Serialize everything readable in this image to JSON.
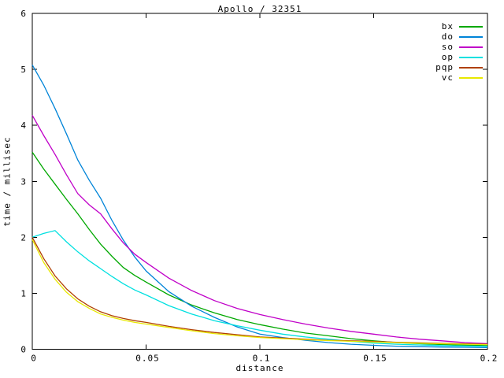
{
  "chart": {
    "title": "Apollo / 32351",
    "xlabel": "distance",
    "ylabel": "time / millisec"
  },
  "chart_data": {
    "type": "line",
    "title": "Apollo / 32351",
    "xlabel": "distance",
    "ylabel": "time / millisec",
    "xlim": [
      0,
      0.2
    ],
    "ylim": [
      0,
      6
    ],
    "x_ticks": [
      0,
      0.05,
      0.1,
      0.15,
      0.2
    ],
    "x_tick_labels": [
      "0",
      "0.05",
      "0.1",
      "0.15",
      "0.2"
    ],
    "y_ticks": [
      0,
      1,
      2,
      3,
      4,
      5,
      6
    ],
    "y_tick_labels": [
      "0",
      "1",
      "2",
      "3",
      "4",
      "5",
      "6"
    ],
    "grid": false,
    "legend_position": "top-right-inside",
    "background_color": "#ffffff",
    "border_color": "#000000",
    "x": [
      0,
      0.005,
      0.01,
      0.015,
      0.02,
      0.025,
      0.03,
      0.035,
      0.04,
      0.045,
      0.05,
      0.06,
      0.07,
      0.08,
      0.09,
      0.1,
      0.11,
      0.12,
      0.13,
      0.14,
      0.15,
      0.16,
      0.17,
      0.18,
      0.19,
      0.2
    ],
    "series": [
      {
        "name": "bx",
        "color": "#00a800",
        "values": [
          3.52,
          3.22,
          2.95,
          2.68,
          2.42,
          2.14,
          1.88,
          1.66,
          1.46,
          1.32,
          1.2,
          0.97,
          0.79,
          0.65,
          0.53,
          0.44,
          0.36,
          0.29,
          0.24,
          0.19,
          0.15,
          0.12,
          0.1,
          0.085,
          0.075,
          0.065
        ]
      },
      {
        "name": "do",
        "color": "#0084d8",
        "values": [
          5.08,
          4.72,
          4.3,
          3.85,
          3.38,
          3.02,
          2.7,
          2.3,
          1.95,
          1.65,
          1.4,
          1.03,
          0.77,
          0.57,
          0.4,
          0.27,
          0.21,
          0.16,
          0.12,
          0.09,
          0.07,
          0.055,
          0.047,
          0.04,
          0.035,
          0.03
        ]
      },
      {
        "name": "so",
        "color": "#c000c8",
        "values": [
          4.18,
          3.82,
          3.48,
          3.12,
          2.78,
          2.58,
          2.42,
          2.15,
          1.9,
          1.7,
          1.55,
          1.27,
          1.05,
          0.87,
          0.73,
          0.62,
          0.53,
          0.45,
          0.38,
          0.32,
          0.27,
          0.22,
          0.18,
          0.15,
          0.12,
          0.1
        ]
      },
      {
        "name": "op",
        "color": "#00e0e0",
        "values": [
          2.0,
          2.07,
          2.12,
          1.92,
          1.74,
          1.58,
          1.44,
          1.3,
          1.17,
          1.06,
          0.97,
          0.78,
          0.63,
          0.51,
          0.42,
          0.34,
          0.27,
          0.22,
          0.18,
          0.14,
          0.11,
          0.09,
          0.077,
          0.066,
          0.057,
          0.05
        ]
      },
      {
        "name": "pqp",
        "color": "#b04000",
        "values": [
          2.0,
          1.62,
          1.31,
          1.08,
          0.9,
          0.77,
          0.67,
          0.6,
          0.55,
          0.51,
          0.48,
          0.41,
          0.35,
          0.3,
          0.26,
          0.22,
          0.2,
          0.18,
          0.16,
          0.15,
          0.14,
          0.125,
          0.115,
          0.105,
          0.098,
          0.09
        ]
      },
      {
        "name": "vc",
        "color": "#e8e800",
        "values": [
          1.96,
          1.55,
          1.25,
          1.02,
          0.85,
          0.73,
          0.63,
          0.57,
          0.52,
          0.48,
          0.45,
          0.39,
          0.33,
          0.28,
          0.24,
          0.21,
          0.19,
          0.17,
          0.155,
          0.142,
          0.13,
          0.118,
          0.108,
          0.098,
          0.09,
          0.083
        ]
      }
    ]
  }
}
